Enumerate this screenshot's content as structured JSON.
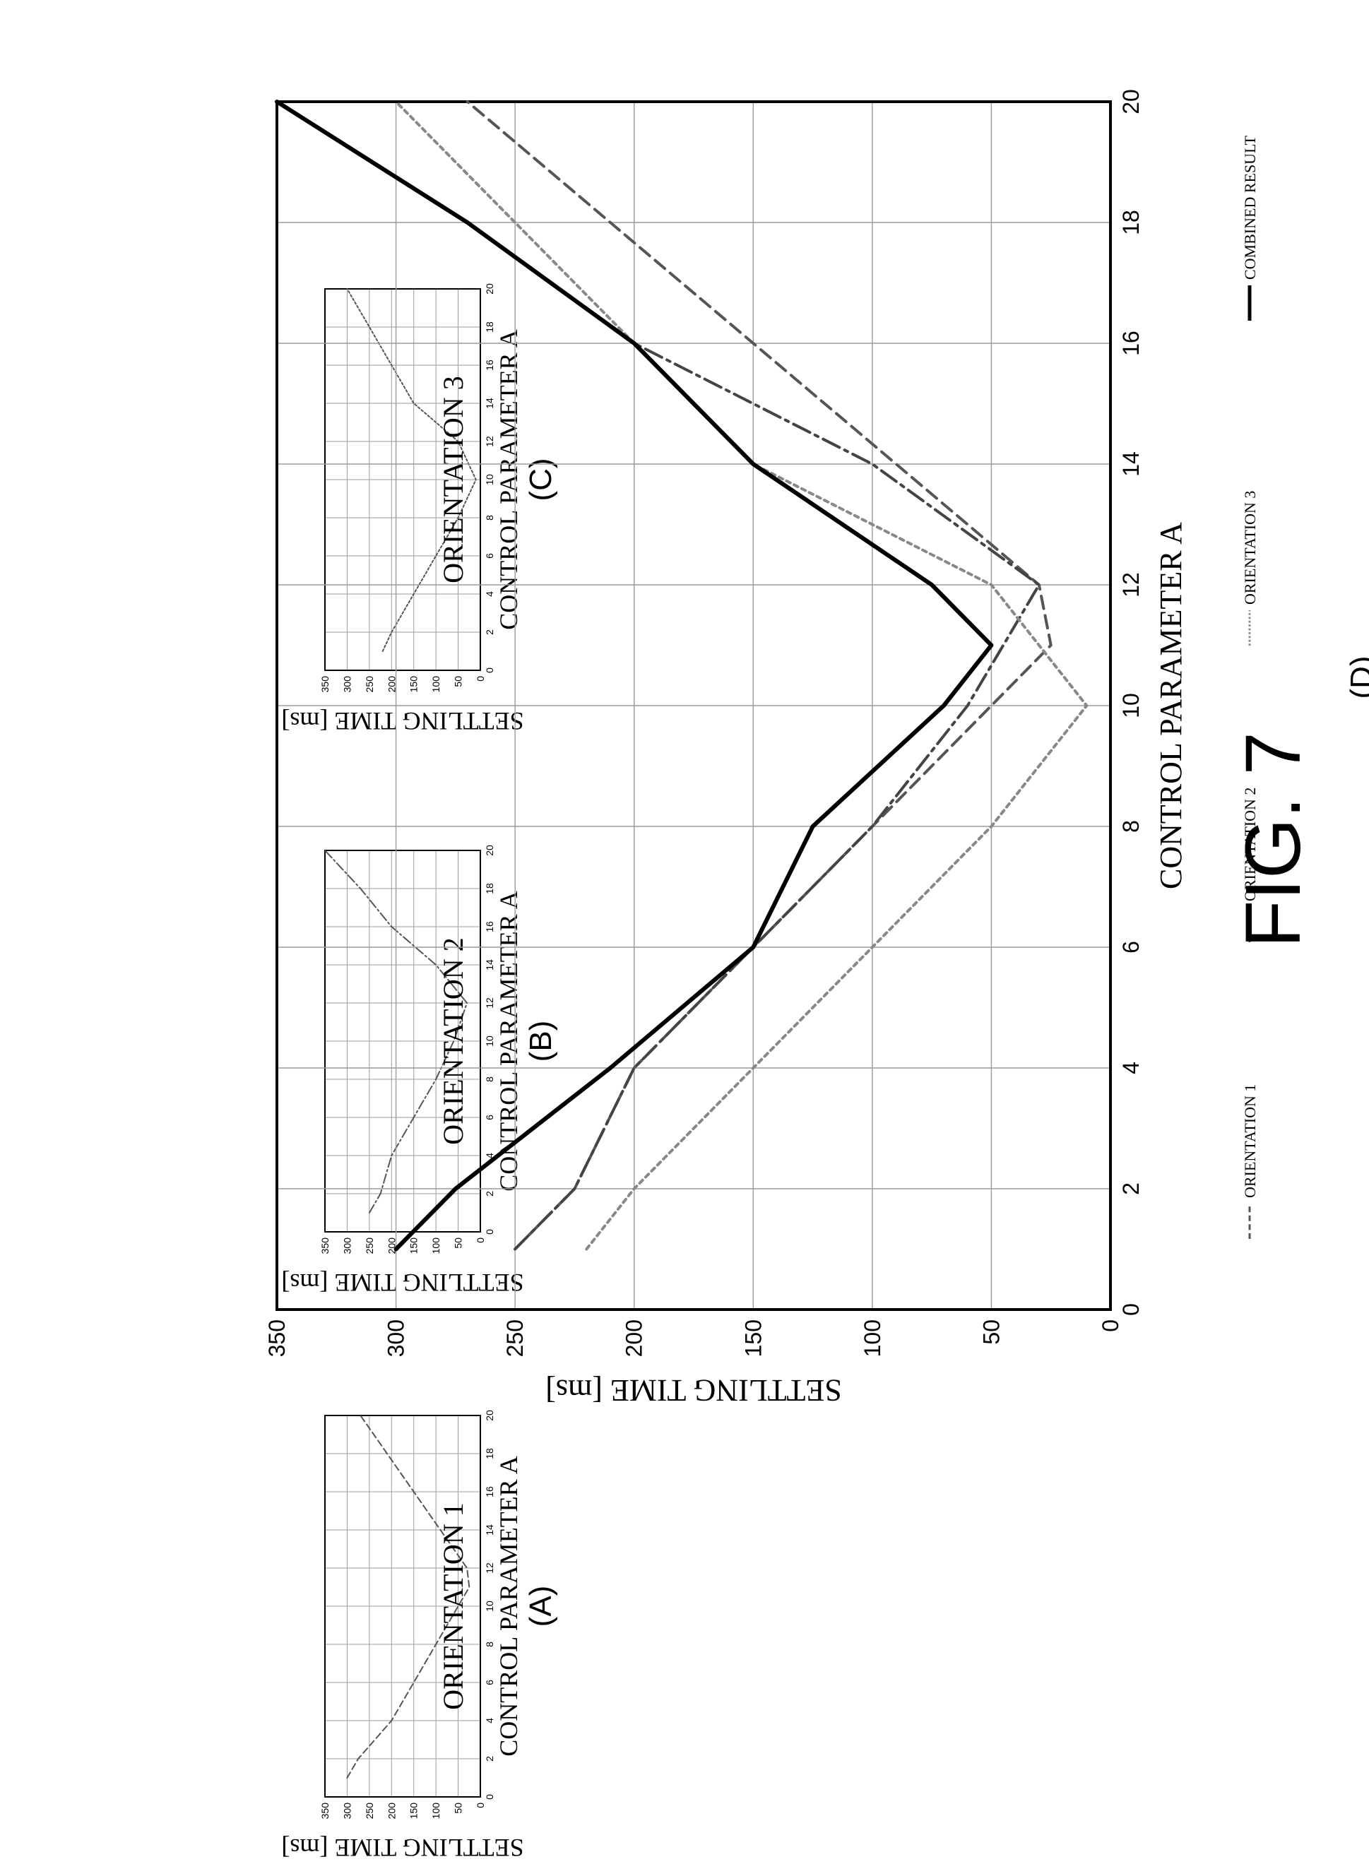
{
  "figure_label": "FIG. 7",
  "chart_data": [
    {
      "id": "A",
      "type": "line",
      "title": "ORIENTATION 1",
      "panel_label": "(A)",
      "xlabel": "CONTROL PARAMETER A",
      "ylabel": "SETTLING TIME [ms]",
      "xlim": [
        0,
        20
      ],
      "ylim": [
        0,
        350
      ],
      "xticks": [
        0,
        2,
        4,
        6,
        8,
        10,
        12,
        14,
        16,
        18,
        20
      ],
      "yticks": [
        0,
        50,
        100,
        150,
        200,
        250,
        300,
        350
      ],
      "grid": true,
      "series": [
        {
          "x": [
            1,
            2,
            4,
            6,
            8,
            10,
            11,
            12,
            14,
            16,
            18,
            20
          ],
          "y": [
            300,
            275,
            200,
            150,
            100,
            50,
            25,
            30,
            90,
            150,
            210,
            270
          ],
          "style": "dashed"
        }
      ]
    },
    {
      "id": "B",
      "type": "line",
      "title": "ORIENTATION 2",
      "panel_label": "(B)",
      "xlabel": "CONTROL PARAMETER A",
      "ylabel": "SETTLING TIME [ms]",
      "xlim": [
        0,
        20
      ],
      "ylim": [
        0,
        350
      ],
      "xticks": [
        0,
        2,
        4,
        6,
        8,
        10,
        12,
        14,
        16,
        18,
        20
      ],
      "yticks": [
        0,
        50,
        100,
        150,
        200,
        250,
        300,
        350
      ],
      "grid": true,
      "series": [
        {
          "x": [
            1,
            2,
            4,
            6,
            8,
            10,
            12,
            14,
            16,
            18,
            20
          ],
          "y": [
            250,
            225,
            200,
            150,
            100,
            60,
            30,
            100,
            200,
            270,
            350
          ],
          "style": "dashdot"
        }
      ]
    },
    {
      "id": "C",
      "type": "line",
      "title": "ORIENTATION 3",
      "panel_label": "(C)",
      "xlabel": "CONTROL PARAMETER A",
      "ylabel": "SETTLING TIME [ms]",
      "xlim": [
        0,
        20
      ],
      "ylim": [
        0,
        350
      ],
      "xticks": [
        0,
        2,
        4,
        6,
        8,
        10,
        12,
        14,
        16,
        18,
        20
      ],
      "yticks": [
        0,
        50,
        100,
        150,
        200,
        250,
        300,
        350
      ],
      "grid": true,
      "series": [
        {
          "x": [
            1,
            2,
            4,
            6,
            8,
            10,
            12,
            14,
            16,
            18,
            20
          ],
          "y": [
            220,
            200,
            150,
            100,
            50,
            10,
            50,
            150,
            200,
            250,
            300
          ],
          "style": "dotted"
        }
      ]
    },
    {
      "id": "D",
      "type": "line",
      "title": "",
      "panel_label": "(D)",
      "xlabel": "CONTROL PARAMETER A",
      "ylabel": "SETTLING TIME [ms]",
      "xlim": [
        0,
        20
      ],
      "ylim": [
        0,
        350
      ],
      "xticks": [
        0,
        2,
        4,
        6,
        8,
        10,
        12,
        14,
        16,
        18,
        20
      ],
      "yticks": [
        0,
        50,
        100,
        150,
        200,
        250,
        300,
        350
      ],
      "grid": true,
      "legend": "bottom",
      "series": [
        {
          "name": "ORIENTATION 1",
          "x": [
            1,
            2,
            4,
            6,
            8,
            10,
            11,
            12,
            14,
            16,
            18,
            20
          ],
          "y": [
            250,
            225,
            200,
            150,
            100,
            50,
            25,
            30,
            90,
            150,
            210,
            270
          ],
          "style": "dashed",
          "color": "#555555"
        },
        {
          "name": "ORIENTATION 2",
          "x": [
            1,
            2,
            4,
            6,
            8,
            10,
            12,
            14,
            16,
            18,
            20
          ],
          "y": [
            250,
            225,
            200,
            150,
            100,
            60,
            30,
            100,
            200,
            270,
            350
          ],
          "style": "dashdot",
          "color": "#444444"
        },
        {
          "name": "ORIENTATION 3",
          "x": [
            1,
            2,
            4,
            6,
            8,
            10,
            12,
            14,
            16,
            18,
            20
          ],
          "y": [
            220,
            200,
            150,
            100,
            50,
            10,
            50,
            150,
            200,
            250,
            300
          ],
          "style": "dotted",
          "color": "#888888"
        },
        {
          "name": "COMBINED RESULT",
          "x": [
            1,
            2,
            4,
            6,
            8,
            10,
            11,
            12,
            14,
            16,
            18,
            20
          ],
          "y": [
            300,
            275,
            210,
            150,
            125,
            70,
            50,
            75,
            150,
            200,
            270,
            350
          ],
          "style": "solid",
          "color": "#000000"
        }
      ]
    }
  ]
}
